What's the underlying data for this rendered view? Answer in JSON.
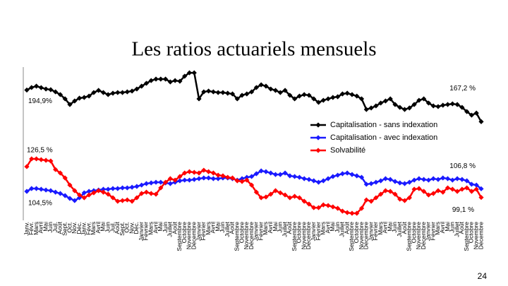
{
  "chart_data": {
    "type": "line",
    "title": "Les ratios actuariels mensuels",
    "page_number": "24",
    "categories": [
      "Janv.",
      "Févr.",
      "Mars",
      "Avril",
      "Mai",
      "Juin",
      "Juil.",
      "Août",
      "Sept.",
      "Oct.",
      "Nov.",
      "Déc.",
      "Janv.",
      "Févr.",
      "Mars",
      "Avril",
      "Mai",
      "Juin",
      "Juil.",
      "Août",
      "Sept.",
      "Oct.",
      "Nov.",
      "Déc.",
      "Janvier",
      "Février",
      "Mars",
      "Avril",
      "Mai",
      "Juin",
      "Juillet",
      "Août",
      "Septembre",
      "Octobre",
      "Novembre",
      "Décembre",
      "Janvier",
      "Février",
      "Mars",
      "Avril",
      "Mai",
      "Juin",
      "Juillet",
      "Août",
      "Septembre",
      "Octobre",
      "Novembre",
      "Décembre",
      "Janvier",
      "Février",
      "Mars",
      "Avril",
      "Mai",
      "Juin",
      "Juillet",
      "Août",
      "Septembre",
      "Octobre",
      "Novembre",
      "Décembre",
      "Janvier",
      "Février",
      "Mars",
      "Avril",
      "Mai",
      "Juin",
      "Juillet",
      "Août",
      "Septembre",
      "Octobre",
      "Novembre",
      "Décembre",
      "Janvier",
      "Février",
      "Mars",
      "Avril",
      "Mai",
      "Juin",
      "Juillet",
      "Août",
      "Septembre",
      "Octobre",
      "Novembre",
      "Décembre",
      "Janvier",
      "Février",
      "Mars",
      "Avril",
      "Mai",
      "Juin",
      "Juillet",
      "Août",
      "Septembre",
      "Octobre",
      "Novembre",
      "Décembre"
    ],
    "ylim": [
      80,
      215
    ],
    "y2lim": [
      82,
      215
    ],
    "legend": "inside-right",
    "series": [
      {
        "name": "Capitalisation - sans indexation",
        "color": "#000000",
        "axis": "y2",
        "values": [
          194.9,
          197.1,
          198.3,
          197,
          195.8,
          195.2,
          193.3,
          190.9,
          187.2,
          182.2,
          185.3,
          187.8,
          188.4,
          189.6,
          192.7,
          194.6,
          192.7,
          190.9,
          192.1,
          192.7,
          192.7,
          193.3,
          194,
          195.8,
          198.3,
          200.8,
          203.2,
          204.5,
          204.5,
          204.5,
          202,
          203.2,
          202.6,
          207,
          210,
          210,
          187.2,
          193.3,
          194,
          193.3,
          192.7,
          192.7,
          192.1,
          191.5,
          187.2,
          190.3,
          191.5,
          193.3,
          197.1,
          199.5,
          198.3,
          195.8,
          194.6,
          192.7,
          194.6,
          190.3,
          187.2,
          189.6,
          190.9,
          190.3,
          187.2,
          184.1,
          185.9,
          187.2,
          188.4,
          189,
          191.5,
          192.1,
          190.9,
          189.6,
          187.2,
          177.9,
          179.2,
          181,
          183.5,
          185.3,
          187.2,
          182.2,
          179.7,
          177.9,
          179.2,
          182.2,
          185.9,
          187.2,
          183.5,
          181,
          180.4,
          181.6,
          182.2,
          182.8,
          182.2,
          179.7,
          176,
          172.9,
          174.7,
          167.2
        ],
        "value_labels": [
          "194,9%",
          null,
          null,
          null,
          null,
          null,
          null,
          null,
          null,
          null,
          null,
          null,
          null,
          null,
          null,
          null,
          null,
          null,
          null,
          null,
          null,
          null,
          null,
          null,
          null,
          null,
          null,
          null,
          null,
          null,
          null,
          null,
          null,
          null,
          null,
          null,
          null,
          null,
          null,
          null,
          null,
          null,
          null,
          null,
          null,
          null,
          null,
          null,
          null,
          null,
          null,
          null,
          null,
          null,
          null,
          null,
          null,
          null,
          null,
          null,
          null,
          null,
          null,
          null,
          null,
          null,
          null,
          null,
          null,
          null,
          null,
          null,
          null,
          null,
          null,
          null,
          null,
          null,
          null,
          null,
          null,
          null,
          null,
          null,
          null,
          null,
          null,
          null,
          null,
          null,
          null,
          null,
          null,
          null,
          null,
          "167,2 %"
        ]
      },
      {
        "name": "Capitalisation - avec indexation",
        "color": "#1a1aff",
        "values": [
          104.5,
          107,
          107,
          106.4,
          105.7,
          105.1,
          103.8,
          102.6,
          100.7,
          98.2,
          96.3,
          98.8,
          103.2,
          104.5,
          105.1,
          105.7,
          106.4,
          106.4,
          107,
          107,
          107.6,
          107.6,
          108.2,
          108.9,
          110.1,
          111.4,
          112,
          112.6,
          112.6,
          112,
          111.4,
          112.6,
          113.9,
          114.5,
          114.5,
          115.1,
          115.8,
          116.4,
          116.4,
          115.8,
          115.8,
          116.4,
          116.4,
          115.8,
          114.5,
          115.8,
          117,
          117.7,
          120.2,
          122.7,
          122,
          120.8,
          119.5,
          119.5,
          120.8,
          118.3,
          117.7,
          117,
          115.8,
          115.1,
          113.9,
          112.6,
          113.9,
          115.8,
          117.7,
          118.9,
          120.2,
          120.8,
          119.5,
          118.3,
          117,
          110.8,
          111.4,
          112.6,
          113.9,
          115.8,
          115.1,
          113.3,
          112,
          111.4,
          112.6,
          114.5,
          115.8,
          115.1,
          114.5,
          115.8,
          115.1,
          116.4,
          115.8,
          114.5,
          115.8,
          115.1,
          113.9,
          110.8,
          110.1,
          106.8
        ],
        "value_labels": [
          "104,5%",
          null,
          null,
          null,
          null,
          null,
          null,
          null,
          null,
          null,
          null,
          null,
          null,
          null,
          null,
          null,
          null,
          null,
          null,
          null,
          null,
          null,
          null,
          null,
          null,
          null,
          null,
          null,
          null,
          null,
          null,
          null,
          null,
          null,
          null,
          null,
          null,
          null,
          null,
          null,
          null,
          null,
          null,
          null,
          null,
          null,
          null,
          null,
          null,
          null,
          null,
          null,
          null,
          null,
          null,
          null,
          null,
          null,
          null,
          null,
          null,
          null,
          null,
          null,
          null,
          null,
          null,
          null,
          null,
          null,
          null,
          null,
          null,
          null,
          null,
          null,
          null,
          null,
          null,
          null,
          null,
          null,
          null,
          null,
          null,
          null,
          null,
          null,
          null,
          null,
          null,
          null,
          null,
          null,
          null,
          "106,8 %"
        ]
      },
      {
        "name": "Solvabilité",
        "color": "#ff0000",
        "values": [
          126.5,
          133.4,
          133.4,
          132.7,
          132.1,
          131.5,
          123.9,
          120.8,
          116.4,
          110.1,
          105.1,
          101.3,
          98.8,
          101.3,
          103.2,
          105.1,
          103.8,
          102,
          98.8,
          95.7,
          96.3,
          96.9,
          95.7,
          98.8,
          102.6,
          103.8,
          102.6,
          102,
          107.6,
          112.6,
          115.8,
          114.5,
          117.7,
          120.8,
          122,
          121.4,
          120.8,
          123.3,
          122,
          120.8,
          118.9,
          118.3,
          117,
          116.4,
          113.9,
          113.3,
          114.5,
          110.1,
          103.8,
          98.8,
          99.5,
          102,
          105.1,
          103.2,
          101.3,
          98.8,
          100.1,
          98.8,
          95.7,
          93.2,
          90,
          90,
          92.5,
          91.9,
          90.7,
          89.4,
          86.9,
          85.6,
          85,
          85,
          89.4,
          96.9,
          95.7,
          98.8,
          102,
          105.1,
          104.5,
          102,
          97.6,
          96.3,
          98.8,
          106.4,
          107,
          104.5,
          101.3,
          102.6,
          105.1,
          103.8,
          107.6,
          106.4,
          104.5,
          106.4,
          107.6,
          104.5,
          106.4,
          99.1
        ],
        "value_labels": [
          "126,5 %",
          null,
          null,
          null,
          null,
          null,
          null,
          null,
          null,
          null,
          null,
          null,
          null,
          null,
          null,
          null,
          null,
          null,
          null,
          null,
          null,
          null,
          null,
          null,
          null,
          null,
          null,
          null,
          null,
          null,
          null,
          null,
          null,
          null,
          null,
          null,
          null,
          null,
          null,
          null,
          null,
          null,
          null,
          null,
          null,
          null,
          null,
          null,
          null,
          null,
          null,
          null,
          null,
          null,
          null,
          null,
          null,
          null,
          null,
          null,
          null,
          null,
          null,
          null,
          null,
          null,
          null,
          null,
          null,
          null,
          null,
          null,
          null,
          null,
          null,
          null,
          null,
          null,
          null,
          null,
          null,
          null,
          null,
          null,
          null,
          null,
          null,
          null,
          null,
          null,
          null,
          null,
          null,
          null,
          null,
          "99,1 %"
        ]
      }
    ]
  }
}
